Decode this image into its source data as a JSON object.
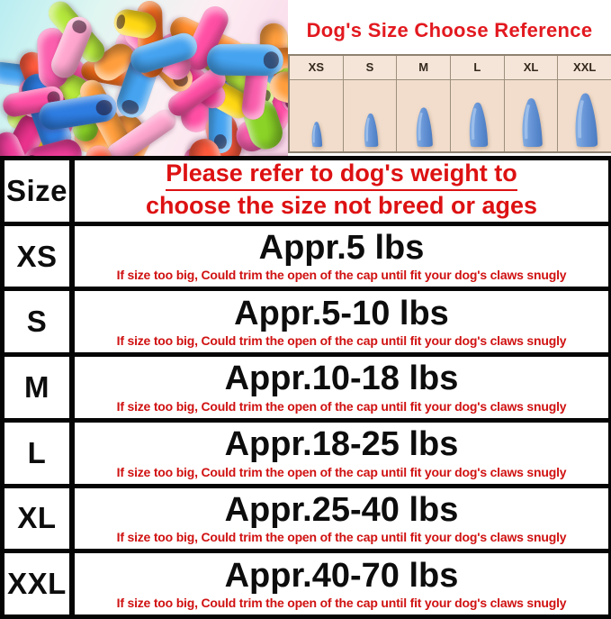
{
  "reference": {
    "title": "Dog's Size Choose Reference",
    "sizes": [
      "XS",
      "S",
      "M",
      "L",
      "XL",
      "XXL"
    ],
    "cap_heights": [
      30,
      40,
      47,
      53,
      58,
      64
    ]
  },
  "table": {
    "size_header": "Size",
    "notice_line1": "Please refer to dog's weight to",
    "notice_line2": "choose the size not breed or ages",
    "note": "If size too big, Could trim the open of the cap until fit your dog's claws snugly",
    "rows": [
      {
        "size": "XS",
        "weight": "Appr.5 lbs"
      },
      {
        "size": "S",
        "weight": "Appr.5-10 lbs"
      },
      {
        "size": "M",
        "weight": "Appr.10-18 lbs"
      },
      {
        "size": "L",
        "weight": "Appr.18-25 lbs"
      },
      {
        "size": "XL",
        "weight": "Appr.25-40 lbs"
      },
      {
        "size": "XXL",
        "weight": "Appr.40-70 lbs"
      }
    ]
  },
  "colors": {
    "title_red": "#e2191f",
    "notice_red": "#dd1112",
    "note_red": "#d01111",
    "text_black": "#0d0d0d",
    "border_black": "#050505",
    "reference_panel_bg": "#f2ddcc",
    "reference_cap_blue": "#6694d6"
  },
  "photo": {
    "description": "pile of colorful dog nail caps",
    "cap_colors": [
      "#ff4fa5",
      "#ee3d9a",
      "#ff79ba",
      "#fb5fae",
      "#ff8b2a",
      "#f06a18",
      "#ffd814",
      "#ffe845",
      "#2e7de2",
      "#45a3f0",
      "#8bd427",
      "#b6e93c",
      "#ff5a3c",
      "#ffa6cf",
      "#e8328c",
      "#ff9e3d"
    ]
  },
  "chart_data": {
    "type": "table",
    "title": "Dog's Size Choose Reference",
    "columns": [
      "Size",
      "Weight"
    ],
    "rows": [
      [
        "XS",
        "Appr.5 lbs"
      ],
      [
        "S",
        "Appr.5-10 lbs"
      ],
      [
        "M",
        "Appr.10-18 lbs"
      ],
      [
        "L",
        "Appr.18-25 lbs"
      ],
      [
        "XL",
        "Appr.25-40 lbs"
      ],
      [
        "XXL",
        "Appr.40-70 lbs"
      ]
    ],
    "notes": [
      "Please refer to dog's weight to choose the size not breed or ages",
      "If size too big, Could trim the open of the cap until fit your dog's claws snugly"
    ]
  }
}
